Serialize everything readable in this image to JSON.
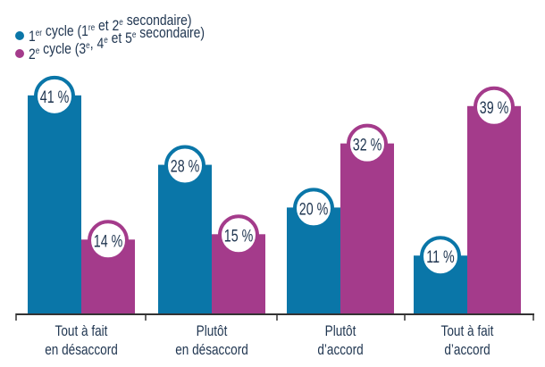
{
  "chart_data": {
    "type": "bar",
    "title": "",
    "xlabel": "",
    "ylabel": "",
    "ylim": [
      0,
      45
    ],
    "grid": false,
    "legend_position": "top-left",
    "categories": [
      [
        "Tout à fait",
        "en désaccord"
      ],
      [
        "Plutôt",
        "en désaccord"
      ],
      [
        "Plutôt",
        "d’accord"
      ],
      [
        "Tout à fait",
        "d’accord"
      ]
    ],
    "series": [
      {
        "name": "1er cycle (1re et 2e secondaire)",
        "color": "#0a76a8",
        "values": [
          41,
          28,
          20,
          11
        ]
      },
      {
        "name": "2e cycle (3e, 4e et 5e secondaire)",
        "color": "#a43b8b",
        "values": [
          14,
          15,
          32,
          39
        ]
      }
    ],
    "value_suffix": " %"
  }
}
